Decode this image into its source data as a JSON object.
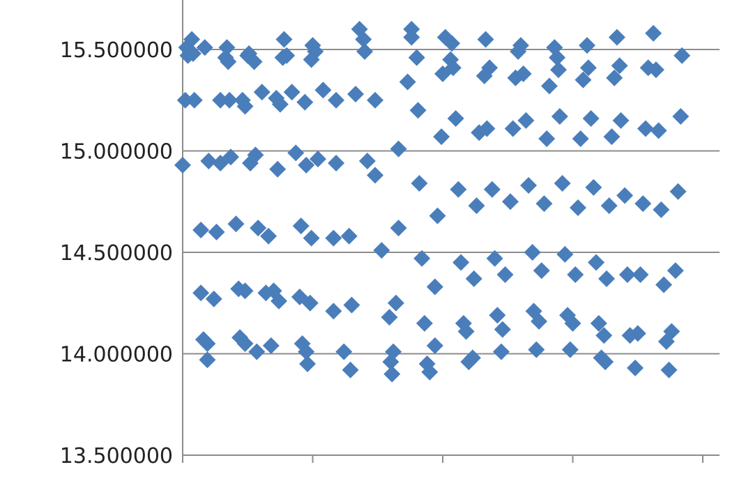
{
  "chart_data": {
    "type": "scatter",
    "title": "",
    "xlabel": "",
    "ylabel": "",
    "ylim": [
      13.5,
      15.75
    ],
    "xlim": [
      0,
      200
    ],
    "grid": "horizontal",
    "legend": "none",
    "y_ticks": [
      {
        "value": 13.5,
        "label": "13.500000"
      },
      {
        "value": 14.0,
        "label": "14.000000"
      },
      {
        "value": 14.5,
        "label": "14.500000"
      },
      {
        "value": 15.0,
        "label": "15.000000"
      },
      {
        "value": 15.5,
        "label": "15.500000"
      }
    ],
    "x_ticks": [
      0,
      50,
      100,
      150,
      200
    ],
    "marker": "diamond",
    "colors": {
      "marker": "#4A7EBB",
      "grid": "#8c8c8c",
      "axis": "#8c8c8c"
    },
    "points": [
      [
        0,
        14.93
      ],
      [
        1,
        15.25
      ],
      [
        1.5,
        15.51
      ],
      [
        2,
        15.47
      ],
      [
        3.5,
        15.55
      ],
      [
        4,
        15.48
      ],
      [
        4.5,
        15.25
      ],
      [
        7,
        14.61
      ],
      [
        7,
        14.3
      ],
      [
        8,
        14.07
      ],
      [
        8.5,
        15.51
      ],
      [
        9.5,
        13.97
      ],
      [
        9.5,
        14.05
      ],
      [
        10,
        14.95
      ],
      [
        12,
        14.27
      ],
      [
        13,
        14.6
      ],
      [
        14.5,
        15.25
      ],
      [
        14.5,
        14.94
      ],
      [
        16.5,
        15.46
      ],
      [
        17,
        15.51
      ],
      [
        17.5,
        15.44
      ],
      [
        18,
        15.25
      ],
      [
        18.5,
        14.97
      ],
      [
        20.5,
        14.64
      ],
      [
        21.5,
        14.32
      ],
      [
        22,
        14.08
      ],
      [
        23,
        15.25
      ],
      [
        24,
        14.05
      ],
      [
        24,
        14.31
      ],
      [
        24,
        15.22
      ],
      [
        25,
        15.47
      ],
      [
        25.5,
        15.48
      ],
      [
        26,
        14.94
      ],
      [
        27.5,
        15.44
      ],
      [
        28,
        14.98
      ],
      [
        28.5,
        14.01
      ],
      [
        29,
        14.62
      ],
      [
        30.5,
        15.29
      ],
      [
        32,
        14.3
      ],
      [
        33,
        14.58
      ],
      [
        34,
        14.04
      ],
      [
        35,
        14.31
      ],
      [
        36,
        15.26
      ],
      [
        36.5,
        14.91
      ],
      [
        37,
        14.26
      ],
      [
        37.5,
        15.23
      ],
      [
        38.5,
        15.46
      ],
      [
        39,
        15.55
      ],
      [
        40,
        15.47
      ],
      [
        42,
        15.29
      ],
      [
        43.5,
        14.99
      ],
      [
        45,
        14.28
      ],
      [
        45.5,
        14.63
      ],
      [
        46,
        14.05
      ],
      [
        47,
        15.24
      ],
      [
        47.5,
        14.93
      ],
      [
        47.5,
        14.01
      ],
      [
        48,
        13.95
      ],
      [
        49,
        14.25
      ],
      [
        49.5,
        15.45
      ],
      [
        49.5,
        14.57
      ],
      [
        50,
        15.52
      ],
      [
        51,
        15.49
      ],
      [
        52,
        14.96
      ],
      [
        54,
        15.3
      ],
      [
        58,
        14.57
      ],
      [
        58,
        14.21
      ],
      [
        59,
        14.94
      ],
      [
        59,
        15.25
      ],
      [
        62,
        14.01
      ],
      [
        64,
        14.58
      ],
      [
        64.5,
        13.92
      ],
      [
        65,
        14.24
      ],
      [
        66.5,
        15.28
      ],
      [
        68,
        15.6
      ],
      [
        69.5,
        15.55
      ],
      [
        70,
        15.49
      ],
      [
        71,
        14.95
      ],
      [
        74,
        15.25
      ],
      [
        74,
        14.88
      ],
      [
        76.5,
        14.51
      ],
      [
        79.5,
        14.18
      ],
      [
        80,
        13.96
      ],
      [
        80.5,
        13.9
      ],
      [
        81,
        14.01
      ],
      [
        82,
        14.25
      ],
      [
        83,
        14.62
      ],
      [
        83,
        15.01
      ],
      [
        86.5,
        15.34
      ],
      [
        88,
        15.6
      ],
      [
        88,
        15.56
      ],
      [
        90,
        15.46
      ],
      [
        90.5,
        15.2
      ],
      [
        91,
        14.84
      ],
      [
        92,
        14.47
      ],
      [
        93,
        14.15
      ],
      [
        94,
        13.95
      ],
      [
        95,
        13.91
      ],
      [
        97,
        14.04
      ],
      [
        97,
        14.33
      ],
      [
        98,
        14.68
      ],
      [
        99.5,
        15.07
      ],
      [
        100,
        15.38
      ],
      [
        101,
        15.56
      ],
      [
        103,
        15.45
      ],
      [
        103.5,
        15.53
      ],
      [
        104,
        15.41
      ],
      [
        105,
        15.16
      ],
      [
        106,
        14.81
      ],
      [
        107,
        14.45
      ],
      [
        108,
        14.15
      ],
      [
        109,
        14.11
      ],
      [
        110,
        13.96
      ],
      [
        111.5,
        13.98
      ],
      [
        112,
        14.37
      ],
      [
        113,
        14.73
      ],
      [
        114,
        15.09
      ],
      [
        116,
        15.37
      ],
      [
        116.5,
        15.55
      ],
      [
        117,
        15.11
      ],
      [
        118,
        15.41
      ],
      [
        119,
        14.81
      ],
      [
        120,
        14.47
      ],
      [
        121,
        14.19
      ],
      [
        122.5,
        14.01
      ],
      [
        123,
        14.12
      ],
      [
        124,
        14.39
      ],
      [
        126,
        14.75
      ],
      [
        127,
        15.11
      ],
      [
        128,
        15.36
      ],
      [
        129,
        15.49
      ],
      [
        130,
        15.52
      ],
      [
        131,
        15.38
      ],
      [
        132,
        15.15
      ],
      [
        133,
        14.83
      ],
      [
        134.5,
        14.5
      ],
      [
        135,
        14.21
      ],
      [
        136,
        14.02
      ],
      [
        137,
        14.16
      ],
      [
        138,
        14.41
      ],
      [
        139,
        14.74
      ],
      [
        140,
        15.06
      ],
      [
        141,
        15.32
      ],
      [
        143,
        15.51
      ],
      [
        144,
        15.46
      ],
      [
        144.5,
        15.4
      ],
      [
        145,
        15.17
      ],
      [
        146,
        14.84
      ],
      [
        147,
        14.49
      ],
      [
        148,
        14.19
      ],
      [
        149,
        14.02
      ],
      [
        150,
        14.15
      ],
      [
        151,
        14.39
      ],
      [
        152,
        14.72
      ],
      [
        153,
        15.06
      ],
      [
        154,
        15.35
      ],
      [
        155.5,
        15.52
      ],
      [
        156,
        15.41
      ],
      [
        157,
        15.16
      ],
      [
        158,
        14.82
      ],
      [
        159,
        14.45
      ],
      [
        160,
        14.15
      ],
      [
        161,
        13.98
      ],
      [
        162,
        14.09
      ],
      [
        162.5,
        13.96
      ],
      [
        163,
        14.37
      ],
      [
        164,
        14.73
      ],
      [
        165,
        15.07
      ],
      [
        166,
        15.36
      ],
      [
        167,
        15.56
      ],
      [
        168,
        15.42
      ],
      [
        168.5,
        15.15
      ],
      [
        170,
        14.78
      ],
      [
        171,
        14.39
      ],
      [
        172,
        14.09
      ],
      [
        174,
        13.93
      ],
      [
        175,
        14.1
      ],
      [
        176,
        14.39
      ],
      [
        177,
        14.74
      ],
      [
        178,
        15.11
      ],
      [
        179,
        15.41
      ],
      [
        181,
        15.58
      ],
      [
        182,
        15.4
      ],
      [
        183,
        15.1
      ],
      [
        184,
        14.71
      ],
      [
        185,
        14.34
      ],
      [
        186,
        14.06
      ],
      [
        187,
        13.92
      ],
      [
        188,
        14.11
      ],
      [
        189.5,
        14.41
      ],
      [
        190.5,
        14.8
      ],
      [
        191.5,
        15.17
      ],
      [
        192,
        15.47
      ]
    ]
  }
}
